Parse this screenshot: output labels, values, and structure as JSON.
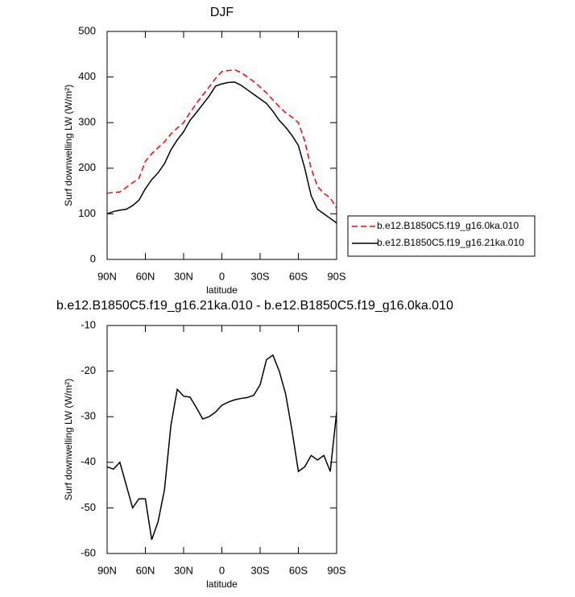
{
  "chart_data": [
    {
      "type": "line",
      "title": "DJF",
      "x_label": "latitude",
      "y_label": "Surf downwelling LW (W/m²)",
      "x": [
        90,
        85,
        80,
        75,
        70,
        65,
        60,
        55,
        50,
        45,
        40,
        35,
        30,
        25,
        20,
        15,
        10,
        5,
        0,
        -5,
        -10,
        -15,
        -20,
        -25,
        -30,
        -35,
        -40,
        -45,
        -50,
        -55,
        -60,
        -65,
        -70,
        -75,
        -80,
        -85,
        -90
      ],
      "series": [
        {
          "name": "b.e12.B1850C5.f19_g16.0ka.010",
          "color": "#ff0000",
          "line_style": "dashed",
          "values": [
            145,
            147,
            148,
            158,
            168,
            178,
            215,
            232,
            245,
            258,
            275,
            288,
            300,
            322,
            342,
            360,
            378,
            397,
            412,
            414,
            416,
            410,
            400,
            390,
            378,
            365,
            350,
            335,
            322,
            312,
            300,
            260,
            200,
            160,
            145,
            135,
            112
          ]
        },
        {
          "name": "b.e12.B1850C5.f19_g16.21ka.010",
          "color": "#000000",
          "line_style": "solid",
          "values": [
            100,
            105,
            108,
            110,
            118,
            130,
            155,
            175,
            190,
            210,
            240,
            262,
            280,
            305,
            322,
            340,
            358,
            380,
            385,
            388,
            389,
            382,
            372,
            362,
            352,
            342,
            325,
            305,
            290,
            272,
            250,
            200,
            140,
            110,
            100,
            90,
            80
          ]
        }
      ],
      "xlim": [
        90,
        -90
      ],
      "xticks": [
        {
          "value": 90,
          "label": "90N"
        },
        {
          "value": 60,
          "label": "60N"
        },
        {
          "value": 30,
          "label": "30N"
        },
        0,
        {
          "value": -30,
          "label": "30S"
        },
        {
          "value": -60,
          "label": "60S"
        },
        {
          "value": -90,
          "label": "90S"
        }
      ],
      "ylim": [
        0,
        500
      ],
      "yticks": [
        0,
        100,
        200,
        300,
        400,
        500
      ],
      "legend": "right"
    },
    {
      "type": "line",
      "title": "b.e12.B1850C5.f19_g16.21ka.010 - b.e12.B1850C5.f19_g16.0ka.010",
      "x_label": "latitude",
      "y_label": "Surf downwelling LW (W/m²)",
      "x": [
        90,
        85,
        80,
        75,
        70,
        65,
        60,
        55,
        50,
        45,
        40,
        35,
        30,
        25,
        20,
        15,
        10,
        5,
        0,
        -5,
        -10,
        -15,
        -20,
        -25,
        -30,
        -35,
        -40,
        -45,
        -50,
        -55,
        -60,
        -65,
        -70,
        -75,
        -80,
        -85,
        -90
      ],
      "series": [
        {
          "color": "#000000",
          "line_style": "solid",
          "values": [
            -41,
            -41.5,
            -40,
            -45,
            -50,
            -48,
            -48,
            -57,
            -53,
            -46,
            -32,
            -24,
            -25.5,
            -25.7,
            -28,
            -30.5,
            -30,
            -29,
            -27.5,
            -26.8,
            -26.3,
            -26,
            -25.8,
            -25.3,
            -23,
            -17.5,
            -16.5,
            -20,
            -25,
            -33,
            -42,
            -41,
            -38.5,
            -39.5,
            -38.5,
            -42,
            -29
          ]
        }
      ],
      "xlim": [
        90,
        -90
      ],
      "xticks": [
        {
          "value": 90,
          "label": "90N"
        },
        {
          "value": 60,
          "label": "60N"
        },
        {
          "value": 30,
          "label": "30N"
        },
        0,
        {
          "value": -30,
          "label": "30S"
        },
        {
          "value": -60,
          "label": "60S"
        },
        {
          "value": -90,
          "label": "90S"
        }
      ],
      "ylim": [
        -60,
        -10
      ],
      "yticks": [
        -60,
        -50,
        -40,
        -30,
        -20,
        -10
      ]
    }
  ]
}
